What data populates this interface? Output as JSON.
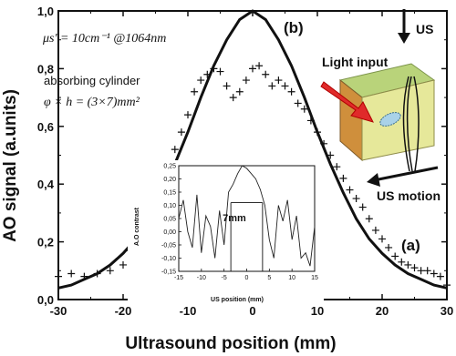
{
  "chart_data": [
    {
      "type": "scatter",
      "xlabel": "Ultrasound position (mm)",
      "ylabel": "AO signal (a.units)",
      "xlim": [
        -30,
        30
      ],
      "ylim": [
        0,
        1
      ],
      "xticks": [
        "-30",
        "-20",
        "-10",
        "0",
        "10",
        "20",
        "30"
      ],
      "yticks": [
        "0,0",
        "0,2",
        "0,4",
        "0,6",
        "0,8",
        "1,0"
      ],
      "grid": false,
      "panel_labels": [
        "(b)",
        "(a)"
      ],
      "annotations": {
        "mu_line": "μs' = 10cm⁻¹ @1064nm",
        "cyl_line1": "absorbing cylinder",
        "cyl_line2": "φ × h = (3×7)mm²"
      },
      "series": [
        {
          "marker": "cross",
          "x": [
            -30,
            -28,
            -26,
            -24,
            -22,
            -20,
            -19,
            -18,
            -17,
            -16,
            -15,
            -14,
            -13,
            -12,
            -11,
            -10,
            -9,
            -8,
            -7,
            -6,
            -5,
            -4,
            -3,
            -2,
            -1,
            0,
            1,
            2,
            3,
            4,
            5,
            6,
            7,
            8,
            9,
            10,
            11,
            12,
            13,
            14,
            15,
            16,
            17,
            18,
            19,
            20,
            21,
            22,
            23,
            24,
            25,
            26,
            27,
            28,
            29,
            30
          ],
          "y": [
            0.08,
            0.09,
            0.08,
            0.09,
            0.1,
            0.12,
            0.17,
            0.22,
            0.25,
            0.28,
            0.32,
            0.38,
            0.44,
            0.52,
            0.58,
            0.64,
            0.72,
            0.76,
            0.78,
            0.8,
            0.79,
            0.74,
            0.7,
            0.72,
            0.76,
            0.8,
            0.81,
            0.78,
            0.74,
            0.76,
            0.74,
            0.72,
            0.68,
            0.66,
            0.62,
            0.58,
            0.54,
            0.5,
            0.46,
            0.42,
            0.38,
            0.35,
            0.32,
            0.28,
            0.24,
            0.21,
            0.18,
            0.15,
            0.13,
            0.12,
            0.11,
            0.1,
            0.1,
            0.09,
            0.08,
            0.05
          ]
        },
        {
          "marker": "line",
          "x": [
            -30,
            -28,
            -26,
            -24,
            -22,
            -20,
            -18,
            -16,
            -14,
            -12,
            -10,
            -8,
            -6,
            -4,
            -2,
            0,
            2,
            4,
            6,
            8,
            10,
            12,
            14,
            16,
            18,
            20,
            22,
            24,
            26,
            28,
            30
          ],
          "y": [
            0.04,
            0.05,
            0.07,
            0.09,
            0.12,
            0.16,
            0.21,
            0.28,
            0.37,
            0.47,
            0.58,
            0.7,
            0.81,
            0.9,
            0.97,
            1.0,
            0.97,
            0.9,
            0.81,
            0.7,
            0.58,
            0.47,
            0.37,
            0.28,
            0.21,
            0.16,
            0.12,
            0.09,
            0.07,
            0.05,
            0.04
          ]
        }
      ]
    },
    {
      "type": "line",
      "title": "",
      "xlabel": "US position (mm)",
      "ylabel": "A.O contrast",
      "xlim": [
        -15,
        15
      ],
      "ylim": [
        -0.15,
        0.25
      ],
      "xticks": [
        "-15",
        "-10",
        "-5",
        "0",
        "5",
        "10",
        "15"
      ],
      "yticks": [
        "0,25",
        "0,20",
        "0,15",
        "0,10",
        "0,05",
        "0,00",
        "-0,05",
        "-0,10",
        "-0,15"
      ],
      "annotation": "7mm",
      "marker_lines_x": [
        -3.5,
        3.5
      ],
      "x": [
        -15,
        -14,
        -13,
        -12,
        -11,
        -10,
        -9,
        -8,
        -7,
        -6,
        -5,
        -4,
        -3,
        -2,
        -1,
        0,
        1,
        2,
        3,
        4,
        5,
        6,
        7,
        8,
        9,
        10,
        11,
        12,
        13,
        14,
        15
      ],
      "y": [
        0.05,
        0.12,
        0.0,
        -0.06,
        0.14,
        -0.08,
        0.06,
        0.02,
        -0.1,
        0.08,
        -0.05,
        0.15,
        0.18,
        0.22,
        0.25,
        0.24,
        0.22,
        0.2,
        0.16,
        0.1,
        -0.03,
        -0.1,
        0.1,
        0.04,
        0.12,
        -0.03,
        0.06,
        -0.1,
        -0.08,
        -0.13,
        0.02
      ]
    }
  ],
  "diagram": {
    "us_label": "US",
    "light_label": "Light input",
    "motion_label": "US motion"
  }
}
